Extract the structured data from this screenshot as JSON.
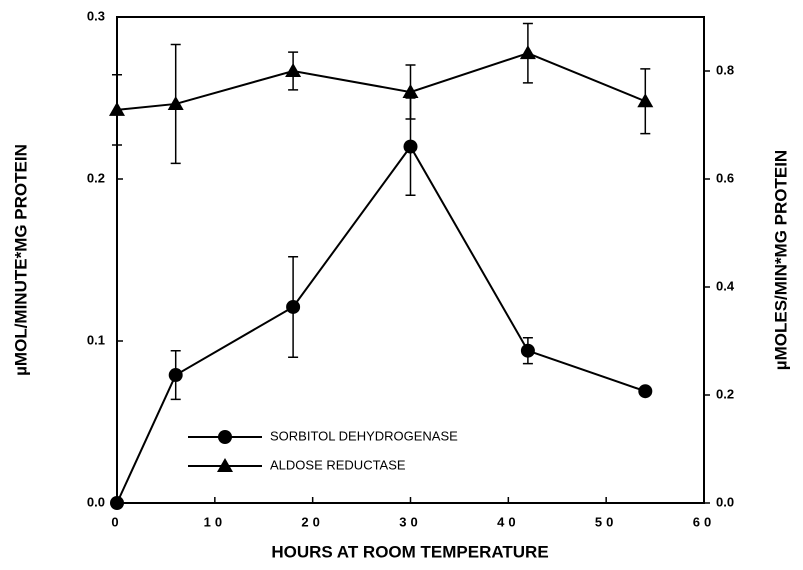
{
  "chart_data": {
    "type": "line",
    "x_label": "HOURS AT ROOM TEMPERATURE",
    "y_label": "µMOL/MINUTE*MG PROTEIN",
    "y2_label": "µMOLES/MIN*MG PROTEIN",
    "xlim": [
      0,
      60
    ],
    "xticks": [
      0,
      10,
      20,
      30,
      40,
      50,
      60
    ],
    "ylim": [
      0,
      0.3
    ],
    "yticks": [
      {
        "value": 0,
        "label": "0.0"
      },
      0.1,
      0.2,
      0.3
    ],
    "y2lim": [
      0,
      0.9
    ],
    "y2ticks": [
      {
        "value": 0,
        "label": "0.0"
      },
      0.2,
      0.4,
      0.6,
      0.8
    ],
    "legend": "lower-left",
    "series": [
      {
        "name": "SORBITOL DEHYDROGENASE",
        "color": "#000000",
        "marker": "circle",
        "x": [
          0,
          6,
          18,
          30,
          42,
          54
        ],
        "values": [
          0,
          0.079,
          0.121,
          0.22,
          0.094,
          0.069
        ],
        "error": [
          0,
          0.015,
          0.031,
          0.03,
          0.008,
          0
        ]
      },
      {
        "name": "ALDOSE REDUCTASE",
        "color": "#000000",
        "marker": "triangle",
        "axis": "y2",
        "x": [
          0,
          6,
          18,
          30,
          42,
          54
        ],
        "values": [
          0.728,
          0.739,
          0.8,
          0.761,
          0.833,
          0.744
        ],
        "error": [
          0.065,
          0.11,
          0.035,
          0.05,
          0.055,
          0.06
        ]
      }
    ]
  }
}
